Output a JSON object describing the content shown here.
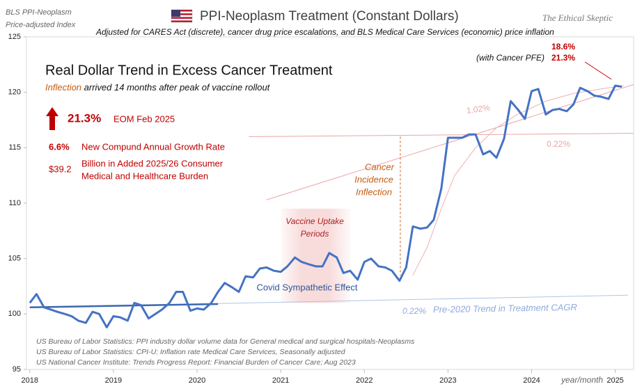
{
  "chart_data": {
    "type": "line",
    "title": "PPI-Neoplasm  Treatment  (Constant Dollars)",
    "corner_label": [
      "BLS PPI-Neoplasm",
      "Price-adjusted  Index"
    ],
    "brand": "The Ethical Skeptic",
    "subtitle": "Adjusted for CARES Act (discrete),  cancer drug price escalations, and BLS Medical Care Services (economic)  price  inflation",
    "xlabel": "year/month",
    "xlim": [
      2017.96,
      2025.22
    ],
    "ylim": [
      95,
      125
    ],
    "xticks": [
      2018,
      2019,
      2020,
      2021,
      2022,
      2023,
      2024,
      2025
    ],
    "yticks": [
      95,
      100,
      105,
      110,
      115,
      120,
      125
    ],
    "series": [
      {
        "color": "#4472c4",
        "x": [
          2018.0,
          2018.08,
          2018.17,
          2018.25,
          2018.33,
          2018.42,
          2018.5,
          2018.58,
          2018.67,
          2018.75,
          2018.83,
          2018.92,
          2019.0,
          2019.08,
          2019.17,
          2019.25,
          2019.33,
          2019.42,
          2019.5,
          2019.58,
          2019.67,
          2019.75,
          2019.83,
          2019.92,
          2020.0,
          2020.08,
          2020.17,
          2020.25,
          2020.33,
          2020.42,
          2020.5,
          2020.58,
          2020.67,
          2020.75,
          2020.83,
          2020.92,
          2021.0,
          2021.08,
          2021.17,
          2021.25,
          2021.33,
          2021.42,
          2021.5,
          2021.58,
          2021.67,
          2021.75,
          2021.83,
          2021.92,
          2022.0,
          2022.08,
          2022.17,
          2022.25,
          2022.33,
          2022.42,
          2022.5,
          2022.58,
          2022.67,
          2022.75,
          2022.83,
          2022.92,
          2023.0,
          2023.08,
          2023.17,
          2023.25,
          2023.33,
          2023.42,
          2023.5,
          2023.58,
          2023.67,
          2023.75,
          2023.83,
          2023.92,
          2024.0,
          2024.08,
          2024.17,
          2024.25,
          2024.33,
          2024.42,
          2024.5,
          2024.58,
          2024.67,
          2024.75,
          2024.83,
          2024.92,
          2025.0,
          2025.08
        ],
        "values": [
          101.0,
          101.8,
          100.6,
          100.4,
          100.2,
          100.0,
          99.8,
          99.4,
          99.2,
          100.2,
          100.0,
          98.8,
          99.8,
          99.7,
          99.4,
          101.0,
          100.8,
          99.6,
          100.0,
          100.4,
          101.0,
          102.0,
          102.0,
          100.3,
          100.5,
          100.4,
          101.0,
          102.0,
          102.8,
          102.4,
          102.0,
          103.4,
          103.3,
          104.1,
          104.2,
          103.9,
          103.8,
          104.3,
          105.1,
          104.7,
          104.5,
          104.3,
          104.3,
          105.5,
          105.1,
          103.7,
          103.9,
          103.1,
          104.7,
          105.0,
          104.3,
          104.2,
          103.9,
          103.0,
          104.2,
          107.9,
          107.7,
          107.8,
          108.5,
          111.3,
          115.9,
          115.9,
          115.9,
          116.2,
          116.2,
          114.4,
          114.7,
          114.1,
          115.8,
          119.2,
          118.5,
          117.6,
          120.1,
          120.3,
          118.0,
          118.4,
          118.5,
          118.3,
          118.9,
          120.4,
          120.1,
          119.7,
          119.6,
          119.4,
          120.6,
          120.5
        ]
      },
      {
        "color": "#3a66b0",
        "x": [
          2018.0,
          2020.25
        ],
        "values": [
          100.6,
          100.9
        ]
      },
      {
        "color": "#adc6e8",
        "x": [
          2018.0,
          2025.15
        ],
        "values": [
          100.6,
          101.7
        ]
      },
      {
        "color": "#e8a5a5",
        "x": [
          2020.62,
          2025.22
        ],
        "values": [
          116.0,
          116.3
        ]
      },
      {
        "color": "#e8a5a5",
        "x": [
          2020.83,
          2025.22
        ],
        "values": [
          110.3,
          120.7
        ]
      },
      {
        "color": "#f0b0b0",
        "x": [
          2022.58,
          2022.75,
          2022.92,
          2023.08,
          2023.33,
          2023.58,
          2023.83,
          2024.17,
          2024.5,
          2024.83,
          2025.1
        ],
        "values": [
          103.5,
          106.0,
          109.5,
          112.5,
          115.0,
          116.8,
          118.0,
          119.2,
          119.9,
          120.3,
          120.6
        ]
      },
      {
        "color": "#c55a11",
        "dashed": true,
        "x": [
          2022.43,
          2022.43
        ],
        "values": [
          116.0,
          103.5
        ]
      }
    ],
    "shaded_region": {
      "x": [
        2021.0,
        2021.83
      ],
      "y": [
        101.0,
        109.5
      ],
      "color": "#e88a8a",
      "label": [
        "Vaccine Uptake",
        "Periods"
      ]
    },
    "annotations": {
      "headline": "Real Dollar Trend in Excess Cancer Treatment",
      "inflection_word": "Inflection",
      "inflection_note": " arrived 14 months after peak of vaccine rollout",
      "change": "21.3%",
      "change_date": "EOM Feb 2025",
      "cagr": "6.6%",
      "cagr_label": "New Compund Annual Growth Rate",
      "burden": "$39.2",
      "burden_label": [
        "Billion in Added 2025/26 Consumer",
        "Medical and Healthcare Burden"
      ],
      "peak_a": "18.6%",
      "pfe_label": "(with Cancer PFE)",
      "peak_b": "21.3%",
      "incidence": [
        "Cancer",
        "Incidence",
        "Inflection"
      ],
      "covid": "Covid Sympathetic Effect",
      "rate_high": "1.02%",
      "rate_low": "0.22%",
      "pre2020_rate": "0.22%",
      "pre2020_label": "Pre-2020 Trend in Treatment CAGR"
    },
    "sources": [
      "US Bureau of Labor Statistics: PPI industry dollar volume data for General medical and surgical hospitals-Neoplasms",
      "US Bureau of Labor Statistics: CPI-U: Inflation rate Medical Care Services, Seasonally adjusted",
      "US National Cancer Institute: Trends Progress Report: Financial Burden of Cancer Care; Aug 2023"
    ]
  }
}
